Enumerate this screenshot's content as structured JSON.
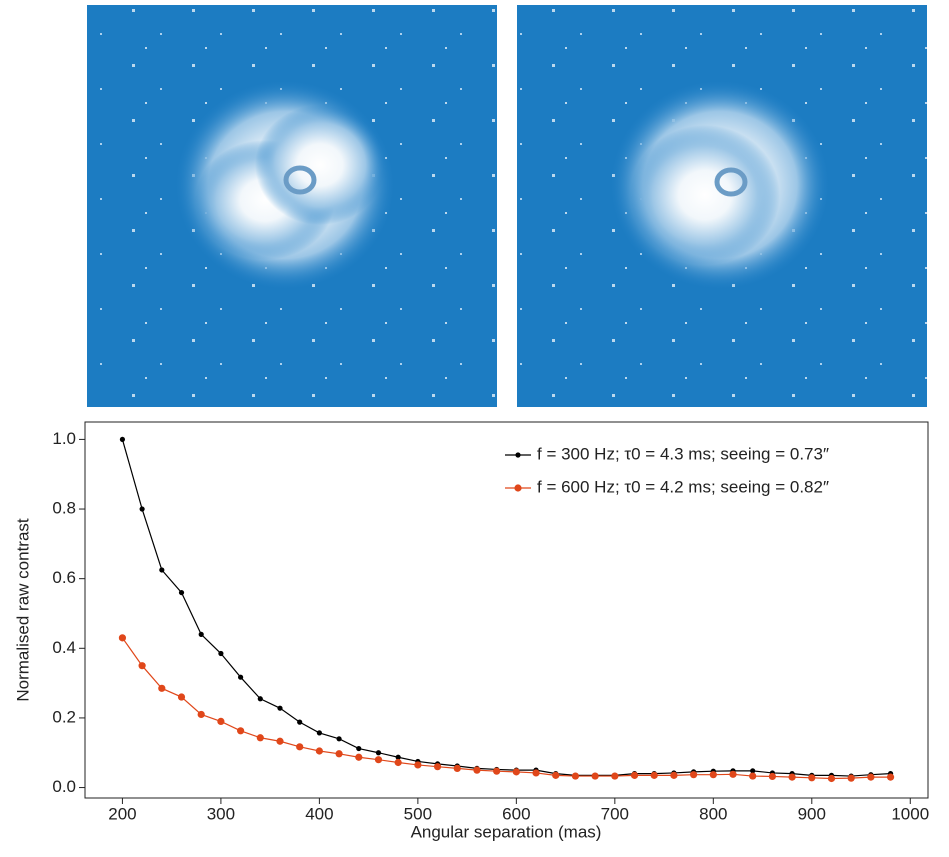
{
  "chart_data": {
    "type": "line",
    "xlabel": "Angular separation (mas)",
    "ylabel": "Normalised raw contrast",
    "x": [
      200,
      220,
      240,
      260,
      280,
      300,
      320,
      340,
      360,
      380,
      400,
      420,
      440,
      460,
      480,
      500,
      520,
      540,
      560,
      580,
      600,
      620,
      640,
      660,
      680,
      700,
      720,
      740,
      760,
      780,
      800,
      820,
      840,
      860,
      880,
      900,
      920,
      940,
      960,
      980
    ],
    "series": [
      {
        "name": "f = 300 Hz; τ0 = 4.3 ms; seeing = 0.73″",
        "color": "#000000",
        "values": [
          1.0,
          0.8,
          0.625,
          0.56,
          0.44,
          0.385,
          0.317,
          0.255,
          0.228,
          0.188,
          0.157,
          0.14,
          0.112,
          0.1,
          0.087,
          0.075,
          0.068,
          0.062,
          0.055,
          0.052,
          0.05,
          0.05,
          0.04,
          0.035,
          0.035,
          0.035,
          0.04,
          0.04,
          0.042,
          0.045,
          0.047,
          0.048,
          0.048,
          0.042,
          0.04,
          0.035,
          0.035,
          0.033,
          0.037,
          0.04
        ]
      },
      {
        "name": "f = 600 Hz; τ0 = 4.2 ms; seeing = 0.82″",
        "color": "#e0471a",
        "values": [
          0.43,
          0.35,
          0.285,
          0.26,
          0.21,
          0.19,
          0.163,
          0.143,
          0.133,
          0.117,
          0.105,
          0.097,
          0.087,
          0.08,
          0.072,
          0.065,
          0.06,
          0.055,
          0.05,
          0.047,
          0.045,
          0.042,
          0.035,
          0.033,
          0.033,
          0.033,
          0.035,
          0.035,
          0.035,
          0.037,
          0.037,
          0.038,
          0.033,
          0.032,
          0.03,
          0.028,
          0.026,
          0.027,
          0.03,
          0.03
        ]
      }
    ],
    "xlim": [
      162,
      1018
    ],
    "xticks": [
      200,
      300,
      400,
      500,
      600,
      700,
      800,
      900,
      1000
    ],
    "ylim": [
      -0.03,
      1.05
    ],
    "yticks": [
      {
        "value": 0,
        "label": "0.0"
      },
      0.2,
      0.4,
      0.6,
      0.8,
      {
        "value": 1,
        "label": "1.0"
      }
    ],
    "legend": "upper right"
  }
}
